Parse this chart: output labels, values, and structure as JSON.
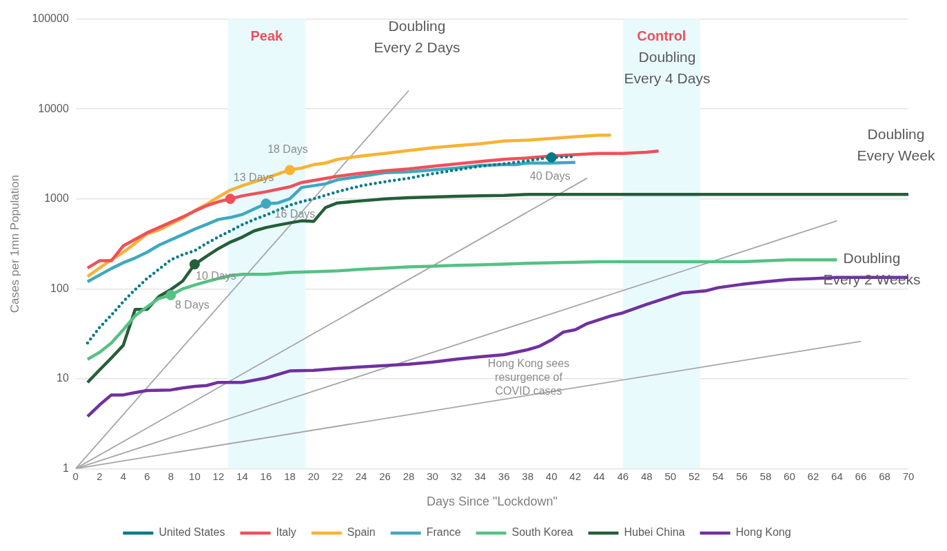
{
  "chart_data": {
    "type": "line",
    "xlabel": "Days Since \"Lockdown\"",
    "ylabel": "Cases per 1mn Population",
    "xlim": [
      0,
      70
    ],
    "xticks": [
      0,
      2,
      4,
      6,
      8,
      10,
      12,
      14,
      16,
      18,
      20,
      22,
      24,
      26,
      28,
      30,
      32,
      34,
      36,
      38,
      40,
      42,
      44,
      46,
      48,
      50,
      52,
      54,
      56,
      58,
      60,
      62,
      64,
      66,
      68,
      70
    ],
    "ylim": [
      1,
      100000
    ],
    "yticks": [
      1,
      10,
      100,
      1000,
      10000,
      100000
    ],
    "log": "y",
    "grid": "y",
    "legend": "bottom",
    "marker": "none",
    "series": [
      {
        "name": "United States",
        "color": "#007a87",
        "line_style": "dotted",
        "x": [
          1,
          2,
          3,
          4,
          5,
          6,
          7,
          8,
          9,
          10,
          11,
          12,
          13,
          14,
          15,
          16,
          17,
          18,
          19,
          20,
          22,
          24,
          26,
          28,
          30,
          32,
          34,
          36,
          38,
          40,
          42
        ],
        "values": [
          25,
          37,
          51,
          72,
          98,
          130,
          165,
          210,
          240,
          265,
          320,
          377,
          440,
          515,
          590,
          660,
          750,
          850,
          930,
          1000,
          1200,
          1400,
          1550,
          1700,
          1900,
          2100,
          2300,
          2450,
          2650,
          2900,
          2950
        ]
      },
      {
        "name": "Italy",
        "color": "#f0505a",
        "x": [
          1,
          2,
          3,
          4,
          5,
          6,
          7,
          8,
          9,
          10,
          11,
          12,
          13,
          14,
          16,
          18,
          19,
          20,
          22,
          24,
          26,
          28,
          30,
          32,
          34,
          36,
          38,
          40,
          42,
          44,
          46,
          48,
          49
        ],
        "values": [
          170,
          205,
          205,
          300,
          355,
          420,
          480,
          550,
          630,
          730,
          840,
          930,
          1000,
          1080,
          1200,
          1360,
          1520,
          1600,
          1780,
          1930,
          2050,
          2150,
          2300,
          2450,
          2600,
          2750,
          2850,
          3000,
          3100,
          3200,
          3200,
          3300,
          3400
        ]
      },
      {
        "name": "Spain",
        "color": "#f9b233",
        "x": [
          1,
          2,
          3,
          4,
          5,
          6,
          7,
          8,
          9,
          10,
          11,
          12,
          13,
          14,
          16,
          18,
          19,
          20,
          21,
          22,
          24,
          26,
          28,
          30,
          32,
          34,
          36,
          38,
          40,
          42,
          44,
          45
        ],
        "values": [
          137,
          170,
          210,
          255,
          320,
          410,
          450,
          525,
          610,
          740,
          870,
          1050,
          1250,
          1400,
          1700,
          2100,
          2200,
          2400,
          2500,
          2750,
          3000,
          3200,
          3450,
          3700,
          3900,
          4100,
          4400,
          4500,
          4700,
          4900,
          5100,
          5100
        ]
      },
      {
        "name": "France",
        "color": "#3ea8c0",
        "x": [
          1,
          2,
          3,
          4,
          5,
          6,
          7,
          8,
          9,
          10,
          11,
          12,
          13,
          14,
          15,
          16,
          17,
          18,
          19,
          20,
          21,
          22,
          24,
          26,
          28,
          30,
          32,
          34,
          36,
          37,
          38,
          40,
          42
        ],
        "values": [
          120,
          142,
          168,
          195,
          220,
          255,
          305,
          350,
          400,
          460,
          520,
          590,
          620,
          670,
          770,
          885,
          900,
          1000,
          1340,
          1400,
          1470,
          1630,
          1780,
          1950,
          2000,
          2100,
          2200,
          2350,
          2400,
          2400,
          2500,
          2500,
          2550
        ]
      },
      {
        "name": "South Korea",
        "color": "#55c184",
        "x": [
          1,
          2,
          3,
          4,
          5,
          6,
          7,
          8,
          9,
          10,
          11,
          12,
          13,
          14,
          16,
          18,
          20,
          22,
          24,
          26,
          28,
          30,
          32,
          34,
          36,
          38,
          40,
          44,
          50,
          56,
          60,
          64
        ],
        "values": [
          16.4,
          19.6,
          25,
          35,
          50,
          63,
          78,
          85,
          100,
          110,
          120,
          130,
          140,
          145,
          145,
          152,
          155,
          158,
          165,
          170,
          175,
          178,
          182,
          185,
          188,
          192,
          195,
          200,
          200,
          200,
          210,
          210
        ]
      },
      {
        "name": "Hubei China",
        "color": "#255e3a",
        "x": [
          1,
          2,
          3,
          4,
          5,
          6,
          7,
          8,
          9,
          10,
          11,
          12,
          13,
          14,
          15,
          16,
          17,
          18,
          19,
          20,
          21,
          22,
          24,
          26,
          28,
          30,
          32,
          34,
          36,
          38,
          40,
          50,
          60,
          70
        ],
        "values": [
          9.1,
          12.5,
          17,
          23.5,
          59,
          59,
          82,
          98,
          122,
          187,
          230,
          280,
          330,
          375,
          440,
          480,
          510,
          540,
          570,
          560,
          800,
          900,
          950,
          1000,
          1030,
          1050,
          1070,
          1080,
          1090,
          1120,
          1120,
          1120,
          1120,
          1120
        ]
      },
      {
        "name": "Hong Kong",
        "color": "#7030a0",
        "x": [
          1,
          2,
          3,
          4,
          5,
          6,
          8,
          9,
          10,
          11,
          12,
          14,
          16,
          18,
          20,
          22,
          24,
          26,
          28,
          30,
          32,
          34,
          36,
          38,
          39,
          40,
          41,
          42,
          43,
          45,
          46,
          48,
          50,
          51,
          53,
          54,
          56,
          58,
          60,
          62,
          64,
          70
        ],
        "values": [
          3.8,
          5.1,
          6.6,
          6.6,
          7,
          7.4,
          7.5,
          7.9,
          8.2,
          8.4,
          9.1,
          9.1,
          10.2,
          12.2,
          12.4,
          13,
          13.5,
          14,
          14.5,
          15.3,
          16.5,
          17.5,
          18.5,
          21,
          23,
          27,
          33,
          35,
          41,
          50,
          54,
          67,
          82,
          90,
          95,
          103,
          112,
          120,
          127,
          130,
          134,
          134
        ]
      },
      {
        "color": "#a6a6a6",
        "x": [
          0,
          28
        ],
        "values": [
          1,
          16000
        ]
      },
      {
        "color": "#a6a6a6",
        "x": [
          0,
          43
        ],
        "values": [
          1,
          1700
        ]
      },
      {
        "color": "#a6a6a6",
        "x": [
          0,
          64
        ],
        "values": [
          1,
          570
        ]
      },
      {
        "color": "#a6a6a6",
        "x": [
          0,
          66
        ],
        "values": [
          1,
          26
        ]
      },
      {
        "type": "scatter",
        "marker": "circle",
        "x": [
          8,
          10,
          13,
          16,
          18,
          40
        ],
        "values": [
          85,
          187,
          1000,
          885,
          2090,
          2890
        ],
        "colors": [
          "#55c184",
          "#255e3a",
          "#f0505a",
          "#3ea8c0",
          "#f9b233",
          "#007a87"
        ]
      }
    ],
    "bands": [
      {
        "axis": "x",
        "from": 12.8,
        "to": 19.3,
        "label": "Peak",
        "color": "#e9fafd"
      },
      {
        "axis": "x",
        "from": 46,
        "to": 52.5,
        "label": "Control",
        "color": "#e9fafd"
      }
    ],
    "annotations": [
      "Doubling\nEvery 2 Days",
      "Doubling\nEvery 4 Days",
      "Doubling\nEvery Week",
      "Doubling\nEvery 2 Weeks",
      "Hong Kong sees\nresurgence of\nCOVID cases",
      {
        "text": "8 Days",
        "x": 8,
        "y": 85
      },
      {
        "text": "10 Days",
        "x": 10,
        "y": 187
      },
      {
        "text": "13 Days",
        "x": 13,
        "y": 1000
      },
      {
        "text": "16 Days",
        "x": 16,
        "y": 885
      },
      {
        "text": "18 Days",
        "x": 18,
        "y": 2090
      },
      {
        "text": "40 Days",
        "x": 40,
        "y": 2890
      }
    ]
  }
}
